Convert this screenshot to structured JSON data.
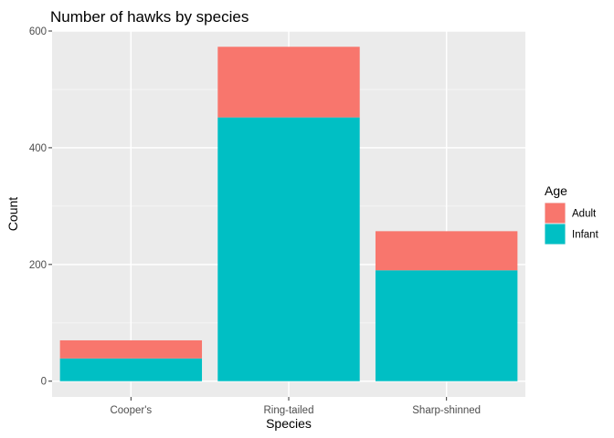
{
  "chart_data": {
    "type": "bar",
    "stacked": true,
    "title": "Number of hawks by species",
    "xlabel": "Species",
    "ylabel": "Count",
    "categories": [
      "Cooper's",
      "Ring-tailed",
      "Sharp-shinned"
    ],
    "series": [
      {
        "name": "Adult",
        "color": "#F8766D",
        "values": [
          31,
          121,
          67
        ]
      },
      {
        "name": "Infant",
        "color": "#00BFC4",
        "values": [
          39,
          452,
          190
        ]
      }
    ],
    "ylim": [
      -27,
      600
    ],
    "yticks": [
      0,
      200,
      400,
      600
    ],
    "grid": true,
    "legend": {
      "title": "Age",
      "position": "right"
    },
    "colors": {
      "panel_background": "#EBEBEB",
      "grid_major": "#FFFFFF",
      "grid_minor": "#F5F5F5",
      "tick_text": "#4D4D4D",
      "tick_mark": "#333333"
    }
  }
}
